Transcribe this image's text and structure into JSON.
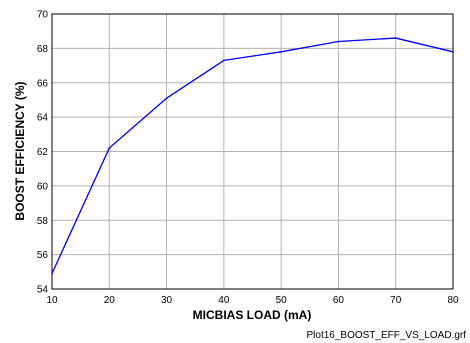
{
  "chart_data": {
    "type": "line",
    "title": "",
    "xlabel": "MICBIAS LOAD (mA)",
    "ylabel": "BOOST EFFICIENCY (%)",
    "xlim": [
      10,
      80
    ],
    "ylim": [
      54,
      70
    ],
    "xticks": [
      10,
      20,
      30,
      40,
      50,
      60,
      70,
      80
    ],
    "yticks": [
      54,
      56,
      58,
      60,
      62,
      64,
      66,
      68,
      70
    ],
    "grid": true,
    "series": [
      {
        "color": "#0000ff",
        "x": [
          10,
          20,
          30,
          40,
          50,
          60,
          70,
          80
        ],
        "y": [
          54.9,
          62.2,
          65.1,
          67.3,
          67.8,
          68.4,
          68.6,
          67.8
        ]
      }
    ]
  },
  "footnote": "Plot16_BOOST_EFF_VS_LOAD.grf"
}
